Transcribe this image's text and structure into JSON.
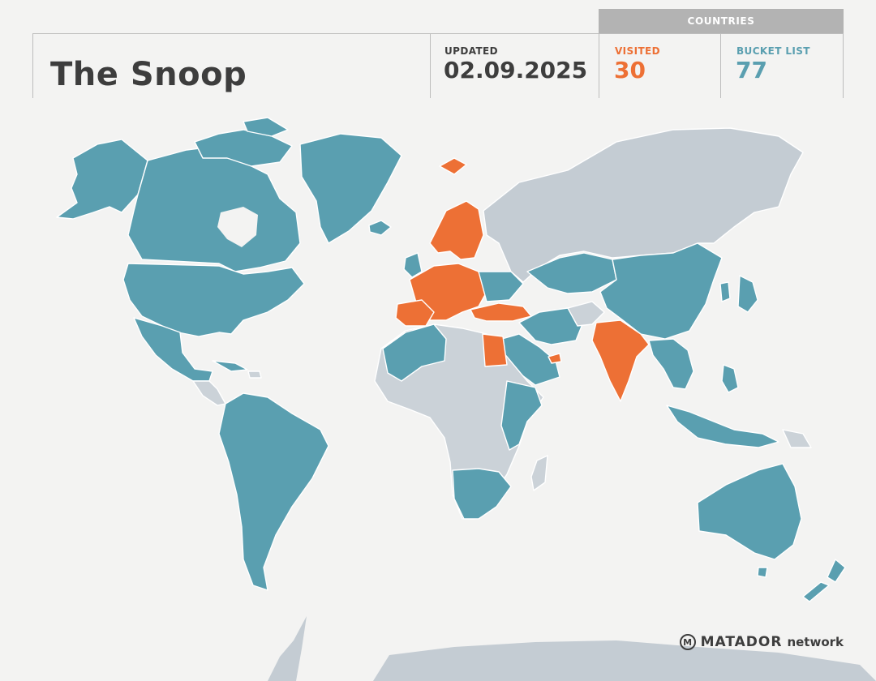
{
  "header": {
    "title": "The Snoop",
    "updated_label": "UPDATED",
    "updated_value": "02.09.2025",
    "countries_label": "COUNTRIES",
    "visited_label": "VISITED",
    "visited_value": "30",
    "bucket_label": "BUCKET LIST",
    "bucket_value": "77"
  },
  "colors": {
    "visited": "#ed7035",
    "bucket_list": "#5a9fb0",
    "not_visited": "#cbd2d8",
    "header_bar": "#b3b3b3"
  },
  "brand": {
    "name": "MATADOR",
    "suffix": "network",
    "logo_icon": "m-circle-icon"
  }
}
